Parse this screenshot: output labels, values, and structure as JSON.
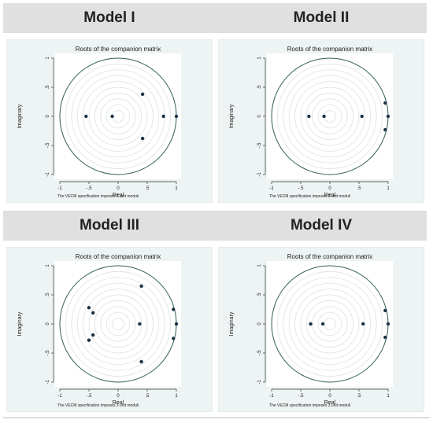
{
  "colors": {
    "header_bg": "#e0e0e0",
    "panel_bg": "#eef3f3",
    "plot_bg": "#ffffff",
    "circle": "#2f5d54",
    "grid_circle": "#d9dede",
    "point": "#1b3345"
  },
  "models": [
    {
      "title": "Model I"
    },
    {
      "title": "Model II"
    },
    {
      "title": "Model III"
    },
    {
      "title": "Model IV"
    }
  ],
  "chart_data": [
    {
      "type": "scatter",
      "title": "Roots of the companion matrix",
      "xlabel": "Real",
      "ylabel": "Imaginary",
      "note": "The VECM specification imposes 3 unit moduli",
      "xlim": [
        -1,
        1
      ],
      "ylim": [
        -1,
        1
      ],
      "xticks": [
        "-1",
        "-.5",
        "0",
        ".5",
        "1"
      ],
      "yticks": [
        "-1",
        "-.5",
        "0",
        ".5",
        "1"
      ],
      "unit_circle": true,
      "points": [
        {
          "x": -0.55,
          "y": 0
        },
        {
          "x": -0.1,
          "y": 0
        },
        {
          "x": 0.42,
          "y": 0.38
        },
        {
          "x": 0.42,
          "y": -0.38
        },
        {
          "x": 0.78,
          "y": 0
        },
        {
          "x": 1.0,
          "y": 0
        }
      ]
    },
    {
      "type": "scatter",
      "title": "Roots of the companion matrix",
      "xlabel": "Real",
      "ylabel": "Imaginary",
      "note": "The VECM specification imposes 3 unit moduli",
      "xlim": [
        -1,
        1
      ],
      "ylim": [
        -1,
        1
      ],
      "xticks": [
        "-1",
        "-.5",
        "0",
        ".5",
        "1"
      ],
      "yticks": [
        "-1",
        "-.5",
        "0",
        ".5",
        "1"
      ],
      "unit_circle": true,
      "points": [
        {
          "x": -0.36,
          "y": 0
        },
        {
          "x": -0.1,
          "y": 0
        },
        {
          "x": 0.55,
          "y": 0
        },
        {
          "x": 0.95,
          "y": 0.23
        },
        {
          "x": 0.95,
          "y": -0.23
        },
        {
          "x": 1.0,
          "y": 0
        }
      ]
    },
    {
      "type": "scatter",
      "title": "Roots of the companion matrix",
      "xlabel": "Real",
      "ylabel": "Imaginary",
      "note": "The VECM specification imposes 3 unit moduli",
      "xlim": [
        -1,
        1
      ],
      "ylim": [
        -1,
        1
      ],
      "xticks": [
        "-1",
        "-.5",
        "0",
        ".5",
        "1"
      ],
      "yticks": [
        "-1",
        "-.5",
        "0",
        ".5",
        "1"
      ],
      "unit_circle": true,
      "points": [
        {
          "x": -0.5,
          "y": 0.28
        },
        {
          "x": -0.43,
          "y": 0.19
        },
        {
          "x": -0.43,
          "y": -0.19
        },
        {
          "x": -0.5,
          "y": -0.28
        },
        {
          "x": 0.4,
          "y": 0.65
        },
        {
          "x": 0.4,
          "y": -0.65
        },
        {
          "x": 0.37,
          "y": 0
        },
        {
          "x": 0.95,
          "y": 0.25
        },
        {
          "x": 0.95,
          "y": -0.25
        },
        {
          "x": 1.0,
          "y": 0
        }
      ]
    },
    {
      "type": "scatter",
      "title": "Roots of the companion matrix",
      "xlabel": "Real",
      "ylabel": "Imaginary",
      "note": "The VECM specification imposes 3 unit moduli",
      "xlim": [
        -1,
        1
      ],
      "ylim": [
        -1,
        1
      ],
      "xticks": [
        "-1",
        "-.5",
        "0",
        ".5",
        "1"
      ],
      "yticks": [
        "-1",
        "-.5",
        "0",
        ".5",
        "1"
      ],
      "unit_circle": true,
      "points": [
        {
          "x": -0.33,
          "y": 0
        },
        {
          "x": -0.12,
          "y": 0
        },
        {
          "x": 0.57,
          "y": 0
        },
        {
          "x": 0.95,
          "y": 0.23
        },
        {
          "x": 0.95,
          "y": -0.23
        },
        {
          "x": 1.0,
          "y": 0
        }
      ]
    }
  ]
}
